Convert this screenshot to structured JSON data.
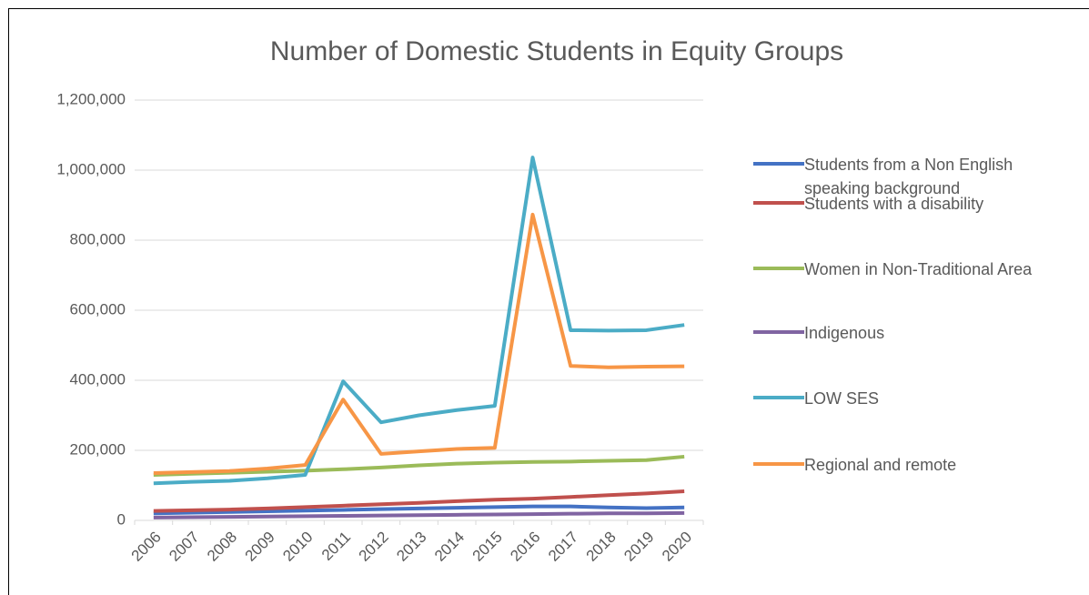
{
  "chart_data": {
    "type": "line",
    "title": "Number of Domestic Students in Equity Groups",
    "categories": [
      "2006",
      "2007",
      "2008",
      "2009",
      "2010",
      "2011",
      "2012",
      "2013",
      "2014",
      "2015",
      "2016",
      "2017",
      "2018",
      "2019",
      "2020"
    ],
    "ylim": [
      0,
      1200000
    ],
    "yticks": [
      0,
      {
        "value": 200000,
        "label": "200,000"
      },
      {
        "value": 400000,
        "label": "400,000"
      },
      {
        "value": 600000,
        "label": "600,000"
      },
      {
        "value": 800000,
        "label": "800,000"
      },
      {
        "value": 1000000,
        "label": "1,000,000"
      },
      {
        "value": 1200000,
        "label": "1,200,000"
      }
    ],
    "grid": true,
    "legend": "right",
    "series": [
      {
        "name": "Students from a Non English speaking background",
        "color": "#4472c4",
        "values": [
          20000,
          22000,
          24000,
          26000,
          28000,
          30000,
          32000,
          34000,
          36000,
          38000,
          40000,
          40000,
          37000,
          35000,
          37000
        ]
      },
      {
        "name": "Students with a disability",
        "color": "#c0504d",
        "values": [
          27000,
          29000,
          31000,
          34000,
          38000,
          42000,
          46000,
          50000,
          55000,
          59000,
          62000,
          67000,
          72000,
          77000,
          83000
        ]
      },
      {
        "name": "Women in Non-Traditional Area",
        "color": "#9bbb59",
        "values": [
          130000,
          133000,
          136000,
          139000,
          142000,
          146000,
          151000,
          157000,
          162000,
          165000,
          167000,
          168000,
          170000,
          172000,
          182000
        ]
      },
      {
        "name": "Indigenous",
        "color": "#8064a2",
        "values": [
          8000,
          9000,
          10000,
          11000,
          12000,
          13000,
          14000,
          15000,
          16000,
          17000,
          18000,
          19000,
          20000,
          20000,
          21000
        ]
      },
      {
        "name": "LOW SES",
        "color": "#4bacc6",
        "values": [
          106000,
          110000,
          113000,
          120000,
          130000,
          397000,
          280000,
          300000,
          315000,
          327000,
          1036000,
          543000,
          542000,
          543000,
          558000
        ]
      },
      {
        "name": "Regional and remote",
        "color": "#f79646",
        "values": [
          135000,
          138000,
          141000,
          148000,
          158000,
          345000,
          190000,
          197000,
          204000,
          207000,
          873000,
          441000,
          437000,
          439000,
          440000
        ]
      }
    ]
  }
}
